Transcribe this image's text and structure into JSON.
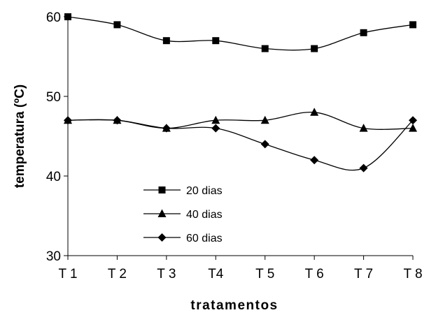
{
  "chart_data": {
    "type": "line",
    "title": "",
    "xlabel": "tratamentos",
    "ylabel": "temperatura (ºC)",
    "categories": [
      "T 1",
      "T 2",
      "T 3",
      "T4",
      "T 5",
      "T 6",
      "T 7",
      "T 8"
    ],
    "ylim": [
      30,
      60
    ],
    "yticks": [
      "30",
      "40",
      "50",
      "60"
    ],
    "grid": false,
    "smooth": true,
    "legend_position": "lower-left inside plot",
    "series": [
      {
        "name": "20 dias",
        "marker": "square",
        "color": "#000000",
        "values": [
          60,
          59,
          57,
          57,
          56,
          56,
          58,
          59
        ]
      },
      {
        "name": "40 dias",
        "marker": "triangle",
        "color": "#000000",
        "values": [
          47,
          47,
          46,
          47,
          47,
          48,
          46,
          46
        ]
      },
      {
        "name": "60 dias",
        "marker": "diamond",
        "color": "#000000",
        "values": [
          47,
          47,
          46,
          46,
          44,
          42,
          41,
          47
        ]
      }
    ]
  }
}
